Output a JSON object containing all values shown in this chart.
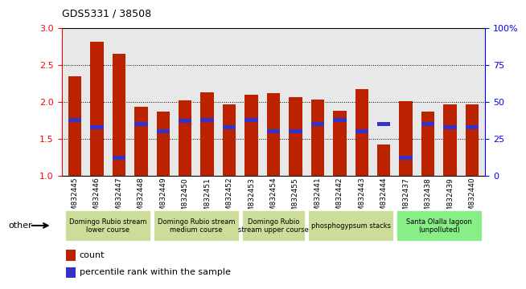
{
  "title": "GDS5331 / 38508",
  "samples": [
    "GSM832445",
    "GSM832446",
    "GSM832447",
    "GSM832448",
    "GSM832449",
    "GSM832450",
    "GSM832451",
    "GSM832452",
    "GSM832453",
    "GSM832454",
    "GSM832455",
    "GSM832441",
    "GSM832442",
    "GSM832443",
    "GSM832444",
    "GSM832437",
    "GSM832438",
    "GSM832439",
    "GSM832440"
  ],
  "count_values": [
    2.35,
    2.82,
    2.65,
    1.93,
    1.87,
    2.02,
    2.13,
    1.97,
    2.1,
    2.12,
    2.07,
    2.03,
    1.88,
    2.17,
    1.42,
    2.01,
    1.87,
    1.97,
    1.97
  ],
  "percentile_values": [
    38,
    33,
    12,
    35,
    30,
    37,
    38,
    33,
    38,
    30,
    30,
    35,
    38,
    30,
    35,
    12,
    35,
    33,
    33
  ],
  "count_color": "#bb2200",
  "percentile_color": "#3333cc",
  "ylim_left": [
    1,
    3
  ],
  "ylim_right": [
    0,
    100
  ],
  "yticks_left": [
    1.0,
    1.5,
    2.0,
    2.5,
    3.0
  ],
  "yticks_right": [
    0,
    25,
    50,
    75,
    100
  ],
  "groups": [
    {
      "label": "Domingo Rubio stream\nlower course",
      "start": 0,
      "end": 4
    },
    {
      "label": "Domingo Rubio stream\nmedium course",
      "start": 4,
      "end": 8
    },
    {
      "label": "Domingo Rubio\nstream upper course",
      "start": 8,
      "end": 11
    },
    {
      "label": "phosphogypsum stacks",
      "start": 11,
      "end": 15
    },
    {
      "label": "Santa Olalla lagoon\n(unpolluted)",
      "start": 15,
      "end": 19
    }
  ],
  "group_colors": [
    "#ccdd99",
    "#ccdd99",
    "#ccdd99",
    "#ccdd99",
    "#88ee88"
  ],
  "bar_width": 0.6,
  "background_color": "#ffffff",
  "plot_bg_color": "#e8e8e8",
  "other_label": "other"
}
